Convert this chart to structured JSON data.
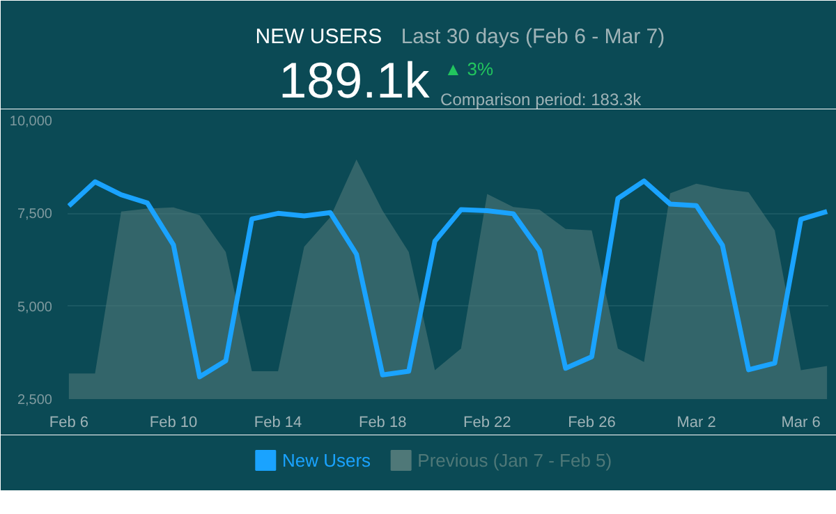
{
  "chart_data": {
    "type": "line",
    "title": "NEW USERS",
    "annotations": [
      "Last 30 days (Feb 6 - Mar 7)",
      "189.1k",
      "▲ 3%",
      "Comparison period: 183.3k"
    ],
    "categories": [
      "Feb 6",
      null,
      null,
      null,
      "Feb 10",
      null,
      null,
      null,
      "Feb 14",
      null,
      null,
      null,
      "Feb 18",
      null,
      null,
      null,
      "Feb 22",
      null,
      null,
      null,
      "Feb 26",
      null,
      null,
      null,
      "Mar 2",
      null,
      null,
      null,
      "Mar 6",
      null
    ],
    "series": [
      {
        "name": "Previous (Jan 7 - Feb 5)",
        "type": "area",
        "color": "#4f7878",
        "values": [
          3190,
          3190,
          7550,
          7630,
          7660,
          7450,
          6460,
          3250,
          3250,
          6600,
          7400,
          8950,
          7570,
          6460,
          3280,
          3860,
          8020,
          7670,
          7600,
          7080,
          7040,
          3860,
          3500,
          8040,
          8300,
          8160,
          8070,
          7040,
          3280,
          3390
        ]
      },
      {
        "name": "New Users",
        "color": "#1aa3ff",
        "values": [
          7700,
          8350,
          8000,
          7780,
          6650,
          3100,
          3530,
          7350,
          7500,
          7430,
          7520,
          6400,
          3150,
          3250,
          6750,
          7600,
          7570,
          7490,
          6500,
          3330,
          3640,
          7900,
          8370,
          7750,
          7710,
          6640,
          3290,
          3470,
          7340,
          7550
        ]
      }
    ],
    "ylim": [
      2500,
      10000
    ],
    "yticks": [
      {
        "value": 2500,
        "label": "2,500"
      },
      {
        "value": 5000,
        "label": "5,000"
      },
      {
        "value": 7500,
        "label": "7,500"
      },
      {
        "value": 10000,
        "label": "10,000"
      }
    ],
    "grid": "y",
    "legend": "bottom",
    "marker": "none",
    "line_style": "solid"
  }
}
